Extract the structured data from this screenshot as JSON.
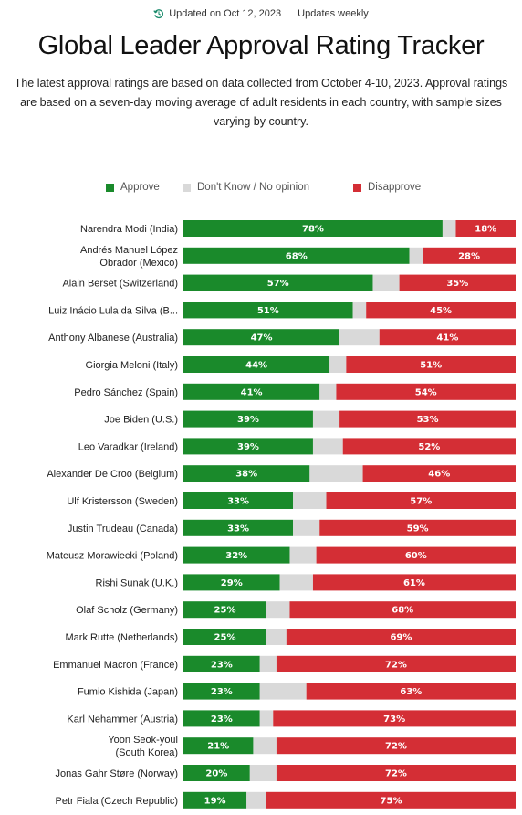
{
  "header": {
    "updated_text": "Updated on Oct 12, 2023",
    "frequency_text": "Updates weekly",
    "title": "Global Leader Approval Rating Tracker",
    "subtitle": "The latest approval ratings are based on data collected from October 4-10, 2023. Approval ratings are based on a seven-day moving average of adult residents in each country, with sample sizes varying by country."
  },
  "icons": {
    "updated": "clock-refresh-icon"
  },
  "colors": {
    "approve": "#1a8a2b",
    "dont_know": "#d9d9d9",
    "disapprove": "#d42e35"
  },
  "chart_data": {
    "type": "bar",
    "orientation": "horizontal-stacked-100",
    "legend": {
      "placement": "top",
      "entries": [
        "Approve",
        "Don't Know / No opinion",
        "Disapprove"
      ]
    },
    "grid": false,
    "categories": [
      [
        "Narendra Modi (India)"
      ],
      [
        "Andrés Manuel López",
        "Obrador (Mexico)"
      ],
      [
        "Alain Berset (Switzerland)"
      ],
      [
        "Luiz Inácio Lula da Silva (B..."
      ],
      [
        "Anthony Albanese (Australia)"
      ],
      [
        "Giorgia Meloni (Italy)"
      ],
      [
        "Pedro Sánchez (Spain)"
      ],
      [
        "Joe Biden (U.S.)"
      ],
      [
        "Leo Varadkar (Ireland)"
      ],
      [
        "Alexander De Croo (Belgium)"
      ],
      [
        "Ulf Kristersson (Sweden)"
      ],
      [
        "Justin Trudeau (Canada)"
      ],
      [
        "Mateusz Morawiecki (Poland)"
      ],
      [
        "Rishi Sunak (U.K.)"
      ],
      [
        "Olaf Scholz (Germany)"
      ],
      [
        "Mark Rutte (Netherlands)"
      ],
      [
        "Emmanuel Macron (France)"
      ],
      [
        "Fumio Kishida (Japan)"
      ],
      [
        "Karl Nehammer (Austria)"
      ],
      [
        "Yoon Seok-youl",
        "(South Korea)"
      ],
      [
        "Jonas Gahr Støre (Norway)"
      ],
      [
        "Petr Fiala (Czech Republic)"
      ]
    ],
    "series": [
      {
        "name": "Approve",
        "values": [
          78,
          68,
          57,
          51,
          47,
          44,
          41,
          39,
          39,
          38,
          33,
          33,
          32,
          29,
          25,
          25,
          23,
          23,
          23,
          21,
          20,
          19
        ]
      },
      {
        "name": "Don't Know / No opinion",
        "values": [
          4,
          4,
          8,
          4,
          12,
          5,
          5,
          8,
          9,
          16,
          10,
          8,
          8,
          10,
          7,
          6,
          5,
          14,
          4,
          7,
          8,
          6
        ]
      },
      {
        "name": "Disapprove",
        "values": [
          18,
          28,
          35,
          45,
          41,
          51,
          54,
          53,
          52,
          46,
          57,
          59,
          60,
          61,
          68,
          69,
          72,
          63,
          73,
          72,
          72,
          75
        ]
      }
    ],
    "value_suffix": "%",
    "xlim": [
      0,
      100
    ]
  }
}
